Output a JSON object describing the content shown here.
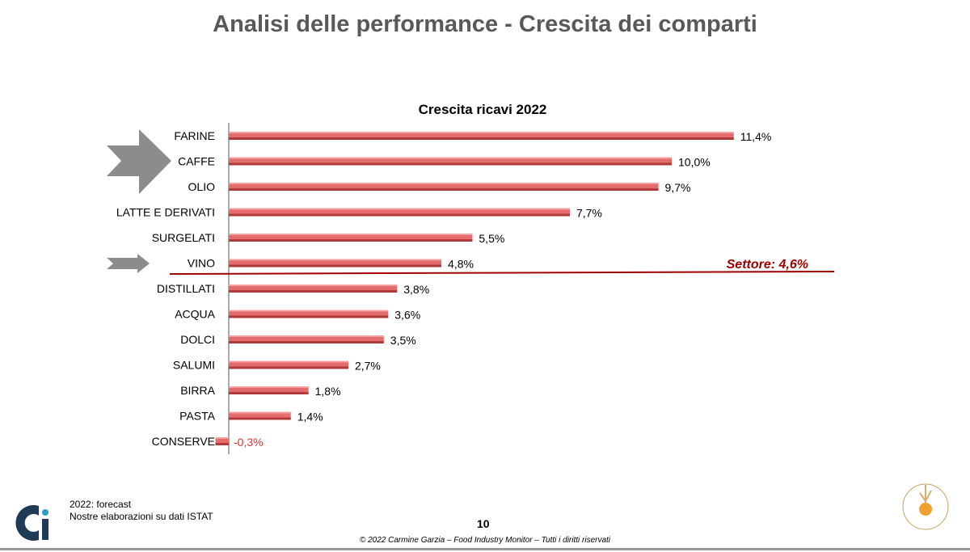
{
  "slide_title": "Analisi delle performance - Crescita dei comparti",
  "chart_data": {
    "type": "bar",
    "orientation": "horizontal",
    "title": "Crescita ricavi 2022",
    "categories": [
      "FARINE",
      "CAFFE",
      "OLIO",
      "LATTE E DERIVATI",
      "SURGELATI",
      "VINO",
      "DISTILLATI",
      "ACQUA",
      "DOLCI",
      "SALUMI",
      "BIRRA",
      "PASTA",
      "CONSERVE"
    ],
    "values": [
      11.4,
      10.0,
      9.7,
      7.7,
      5.5,
      4.8,
      3.8,
      3.6,
      3.5,
      2.7,
      1.8,
      1.4,
      -0.3
    ],
    "labels": [
      "11,4%",
      "10,0%",
      "9,7%",
      "7,7%",
      "5,5%",
      "4,8%",
      "3,8%",
      "3,6%",
      "3,5%",
      "2,7%",
      "1,8%",
      "1,4%",
      "-0,3%"
    ],
    "reference_line": {
      "value": 4.6,
      "label": "Settore: 4,6%"
    },
    "highlighted": [
      "CAFFE",
      "VINO"
    ],
    "bar_color": "#e46c6c",
    "negative_label_color": "#e03030",
    "reference_color": "#a00000"
  },
  "footer": {
    "note1": "2022: forecast",
    "note2": "Nostre elaborazioni su dati ISTAT",
    "page_number": "10",
    "copyright": "© 2022 Carmine Garzia – Food Industry Monitor – Tutti i diritti riservati"
  }
}
